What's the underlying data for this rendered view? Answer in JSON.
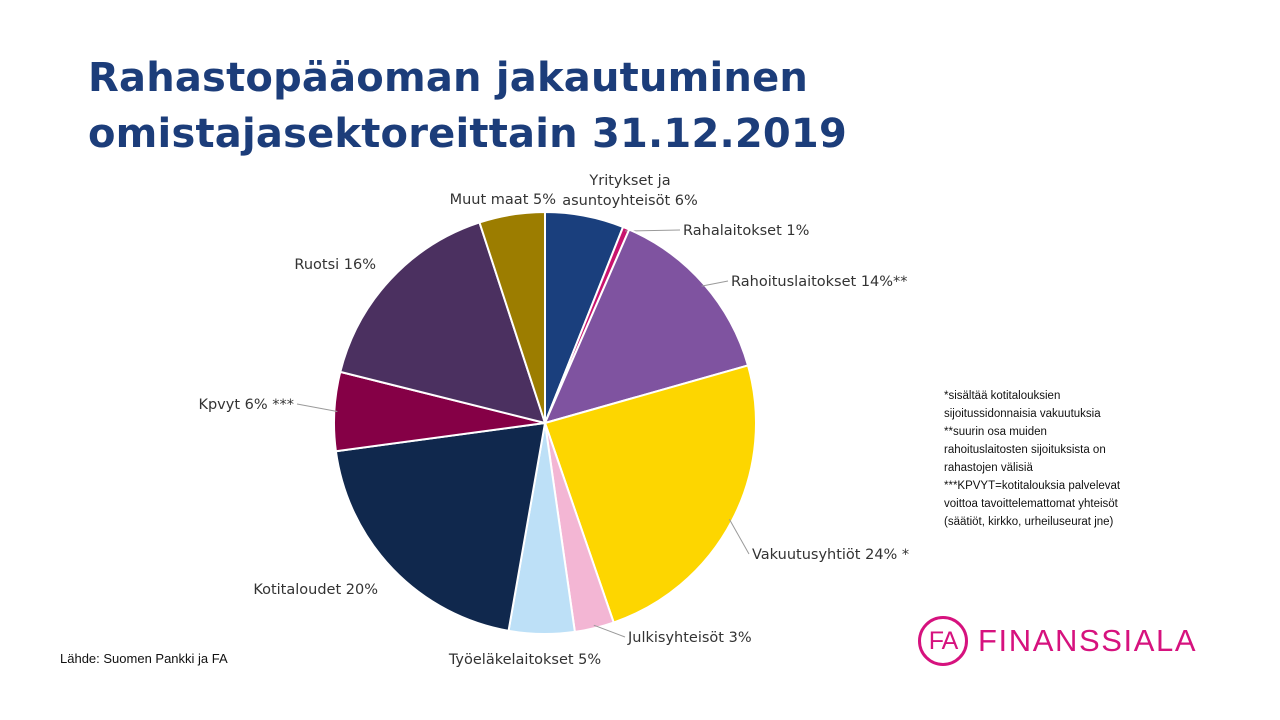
{
  "title": {
    "line1": "Rahastopääoman jakautuminen",
    "line2": "omistajasektoreittain 31.12.2019"
  },
  "chart_data": {
    "type": "pie",
    "title": "Rahastopääoman jakautuminen omistajasektoreittain 31.12.2019",
    "slices": [
      {
        "label_lines": [
          "Yritykset ja",
          "asuntoyhteisöt 6%"
        ],
        "value": 6,
        "color": "#1a3f7d"
      },
      {
        "label_lines": [
          "Rahalaitokset 1%"
        ],
        "value": 0.5,
        "color": "#c8136e"
      },
      {
        "label_lines": [
          "Rahoituslaitokset 14%**"
        ],
        "value": 14,
        "color": "#7f53a0"
      },
      {
        "label_lines": [
          "Vakuutusyhtiöt 24% *"
        ],
        "value": 24,
        "color": "#fdd600"
      },
      {
        "label_lines": [
          "Julkisyhteisöt 3%"
        ],
        "value": 3,
        "color": "#f3b6d4"
      },
      {
        "label_lines": [
          "Työeläkelaitokset 5%"
        ],
        "value": 5,
        "color": "#bde0f7"
      },
      {
        "label_lines": [
          "Kotitaloudet 20%"
        ],
        "value": 20,
        "color": "#10284d"
      },
      {
        "label_lines": [
          "Kpvyt 6% ***"
        ],
        "value": 6,
        "color": "#850046"
      },
      {
        "label_lines": [
          "Ruotsi 16%"
        ],
        "value": 16,
        "color": "#4b3060"
      },
      {
        "label_lines": [
          "Muut maat 5%"
        ],
        "value": 5,
        "color": "#9c7d00"
      }
    ]
  },
  "footnotes": [
    "*sisältää kotitalouksien",
    "sijoitussidonnaisia vakuutuksia",
    "**suurin osa muiden",
    "rahoituslaitosten sijoituksista on",
    "rahastojen välisiä",
    "***KPVYT=kotitalouksia palvelevat",
    "voittoa tavoittelemattomat yhteisöt",
    "(säätiöt, kirkko, urheiluseurat jne)"
  ],
  "source": "Lähde: Suomen  Pankki ja FA",
  "logo": {
    "mark": "FA",
    "name": "FINANSSIALA",
    "color": "#d6127e"
  }
}
